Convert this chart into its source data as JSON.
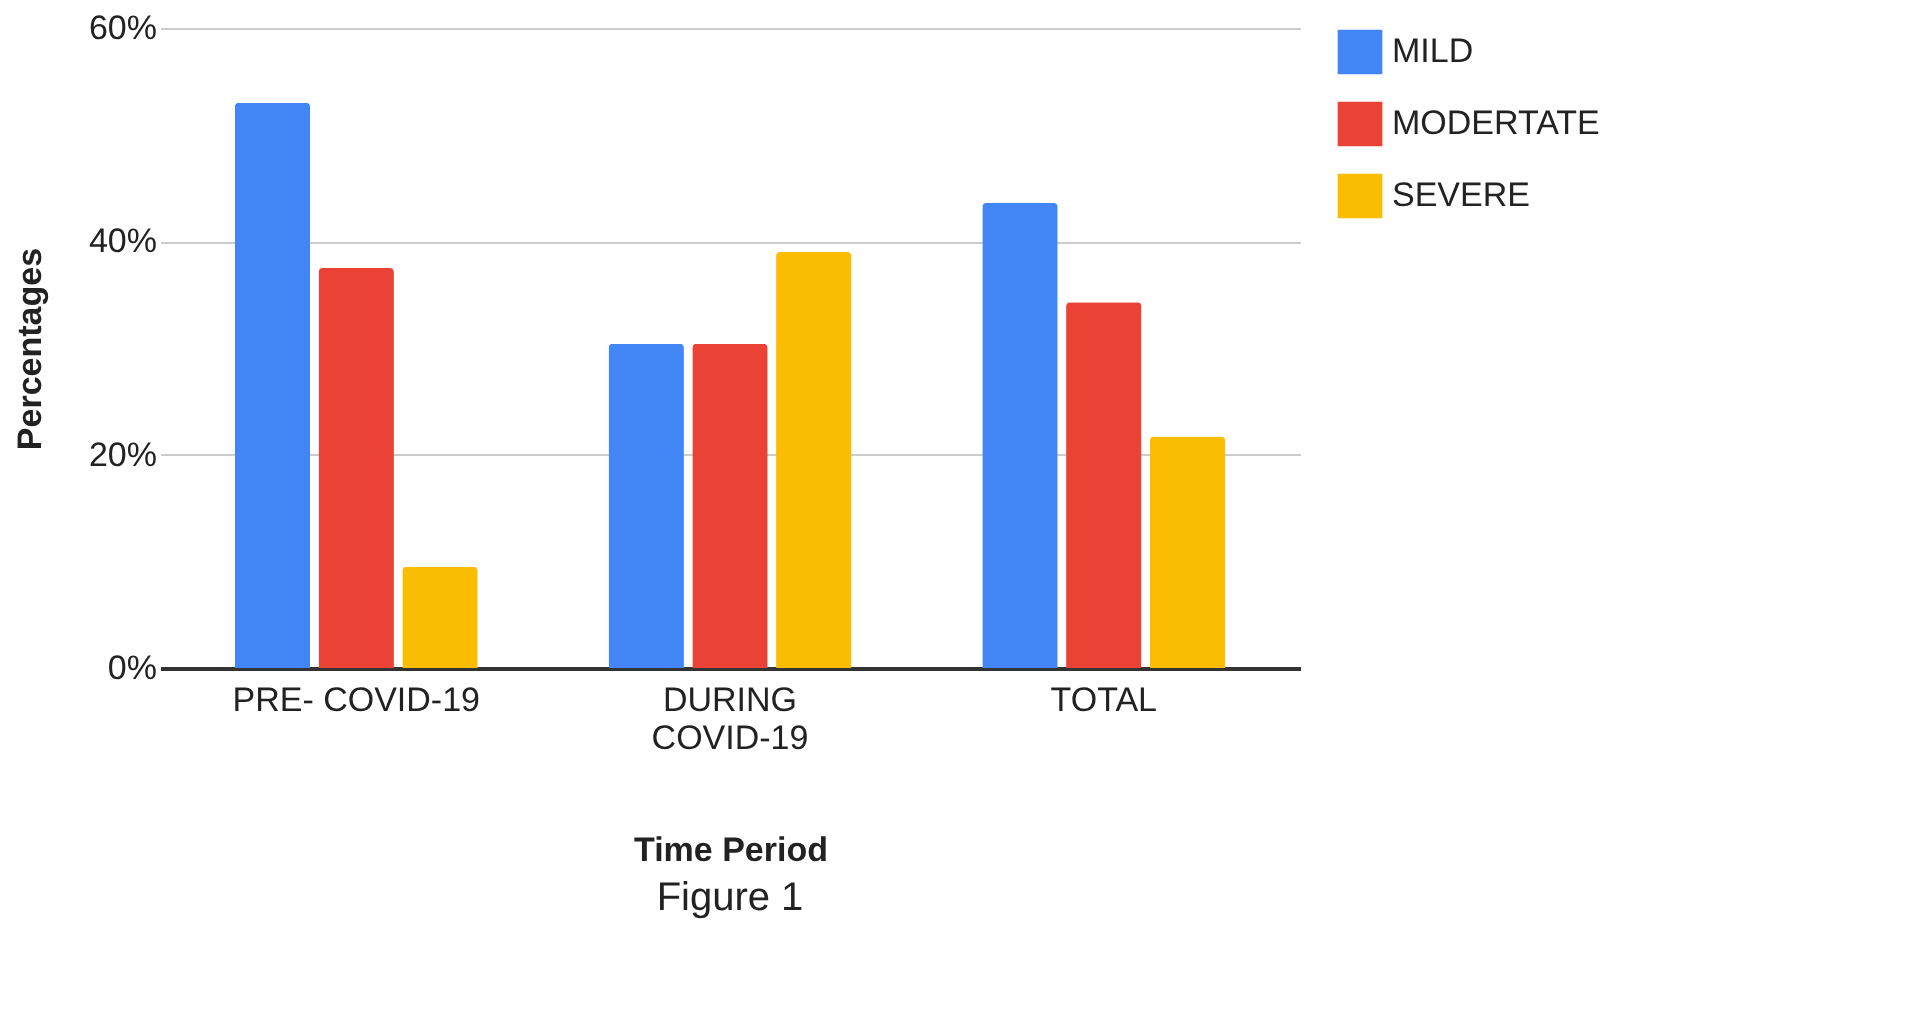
{
  "chart_data": {
    "type": "bar",
    "categories": [
      "PRE- COVID-19",
      "DURING\nCOVID-19",
      "TOTAL"
    ],
    "series": [
      {
        "name": "MILD",
        "color": "#4285f4",
        "values": [
          53,
          30.4,
          43.6
        ]
      },
      {
        "name": "MODERTATE",
        "color": "#ea4335",
        "values": [
          37.5,
          30.4,
          34.3
        ]
      },
      {
        "name": "SEVERE",
        "color": "#fbbc04",
        "values": [
          9.5,
          39,
          21.7
        ]
      }
    ],
    "xlabel": "Time Period",
    "ylabel": "Percentages",
    "ylim": [
      0,
      60
    ],
    "yticks": [
      {
        "value": 0,
        "label": "0%"
      },
      {
        "value": 20,
        "label": "20%"
      },
      {
        "value": 40,
        "label": "40%"
      },
      {
        "value": 60,
        "label": "60%"
      }
    ],
    "grid": "y",
    "legend": "top right",
    "annotations": [
      "Figure 1"
    ]
  }
}
